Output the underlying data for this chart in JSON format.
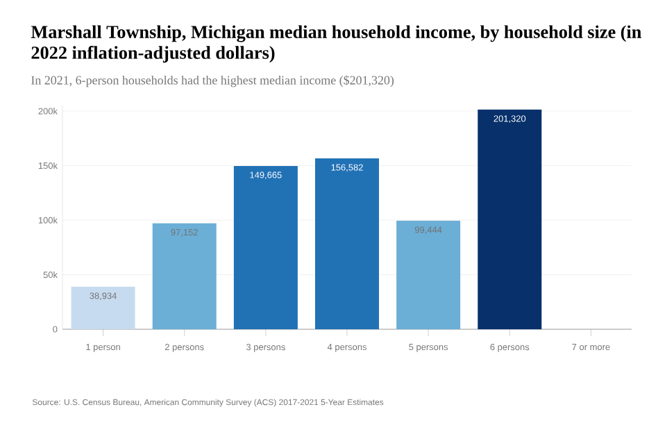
{
  "chart_data": {
    "type": "bar",
    "title": "Marshall Township, Michigan median household income, by household size (in 2022 inflation-adjusted dollars)",
    "subtitle": "In 2021, 6-person households had the highest median income ($201,320)",
    "categories": [
      "1 person",
      "2 persons",
      "3 persons",
      "4 persons",
      "5 persons",
      "6 persons",
      "7 or more"
    ],
    "values": [
      38934,
      97152,
      149665,
      156582,
      99444,
      201320,
      null
    ],
    "colors": [
      "#c6dbef",
      "#6baed6",
      "#2171b5",
      "#2171b5",
      "#6baed6",
      "#08306b",
      "#08306b"
    ],
    "value_labels": [
      "38,934",
      "97,152",
      "149,665",
      "156,582",
      "99,444",
      "201,320",
      null
    ],
    "ylim": [
      0,
      205000
    ],
    "yticks": [
      0,
      {
        "value": 50000,
        "label": "50k"
      },
      {
        "value": 100000,
        "label": "100k"
      },
      {
        "value": 150000,
        "label": "150k"
      },
      {
        "value": 200000,
        "label": "200k"
      }
    ],
    "grid": "y",
    "annotations": [
      "Source: U.S. Census Bureau, American Community Survey (ACS) 2017-2021 5-Year Estimates"
    ]
  }
}
